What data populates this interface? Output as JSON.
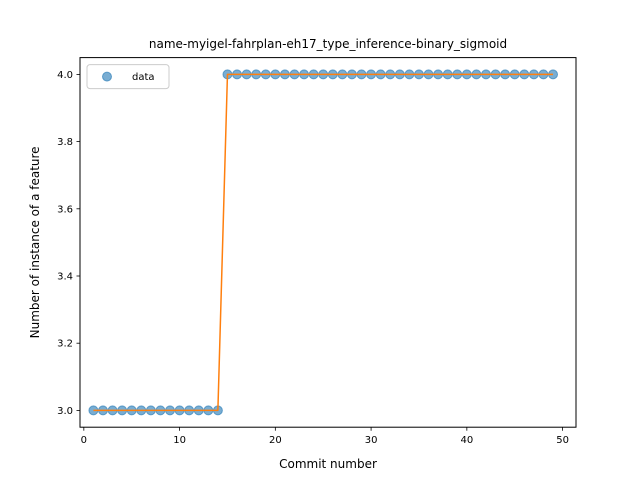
{
  "chart_data": {
    "type": "scatter",
    "title": "name-myigel-fahrplan-eh17_type_inference-binary_sigmoid",
    "xlabel": "Commit number",
    "ylabel": "Number of instance of a feature",
    "xlim": [
      -0.4,
      51.4
    ],
    "ylim": [
      2.95,
      4.05
    ],
    "xticks": [
      0,
      10,
      20,
      30,
      40,
      50
    ],
    "yticks": [
      "3.0",
      "3.2",
      "3.4",
      "3.6",
      "3.8",
      "4.0"
    ],
    "legend": {
      "position": "top-left",
      "entries": [
        "data"
      ]
    },
    "grid": false,
    "series": [
      {
        "name": "data",
        "style": "markers",
        "color": "#1f77b4",
        "x": [
          1,
          2,
          3,
          4,
          5,
          6,
          7,
          8,
          9,
          10,
          11,
          12,
          13,
          14,
          15,
          16,
          17,
          18,
          19,
          20,
          21,
          22,
          23,
          24,
          25,
          26,
          27,
          28,
          29,
          30,
          31,
          32,
          33,
          34,
          35,
          36,
          37,
          38,
          39,
          40,
          41,
          42,
          43,
          44,
          45,
          46,
          47,
          48,
          49
        ],
        "y": [
          3,
          3,
          3,
          3,
          3,
          3,
          3,
          3,
          3,
          3,
          3,
          3,
          3,
          3,
          4,
          4,
          4,
          4,
          4,
          4,
          4,
          4,
          4,
          4,
          4,
          4,
          4,
          4,
          4,
          4,
          4,
          4,
          4,
          4,
          4,
          4,
          4,
          4,
          4,
          4,
          4,
          4,
          4,
          4,
          4,
          4,
          4,
          4,
          4
        ]
      },
      {
        "style": "line",
        "color": "#ff7f0e",
        "x": [
          1,
          2,
          3,
          4,
          5,
          6,
          7,
          8,
          9,
          10,
          11,
          12,
          13,
          14,
          15,
          16,
          17,
          18,
          19,
          20,
          21,
          22,
          23,
          24,
          25,
          26,
          27,
          28,
          29,
          30,
          31,
          32,
          33,
          34,
          35,
          36,
          37,
          38,
          39,
          40,
          41,
          42,
          43,
          44,
          45,
          46,
          47,
          48,
          49
        ],
        "y": [
          3,
          3,
          3,
          3,
          3,
          3,
          3,
          3,
          3,
          3,
          3,
          3,
          3,
          3,
          4,
          4,
          4,
          4,
          4,
          4,
          4,
          4,
          4,
          4,
          4,
          4,
          4,
          4,
          4,
          4,
          4,
          4,
          4,
          4,
          4,
          4,
          4,
          4,
          4,
          4,
          4,
          4,
          4,
          4,
          4,
          4,
          4,
          4,
          4
        ]
      }
    ]
  }
}
